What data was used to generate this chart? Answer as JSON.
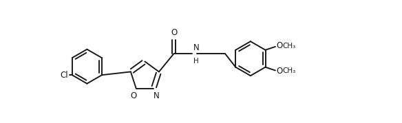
{
  "background_color": "#ffffff",
  "line_color": "#1a1a1a",
  "line_width": 1.4,
  "font_size": 8.5,
  "figsize": [
    5.84,
    1.79
  ],
  "dpi": 100,
  "xlim": [
    0.0,
    10.5
  ],
  "ylim": [
    -0.5,
    3.2
  ]
}
